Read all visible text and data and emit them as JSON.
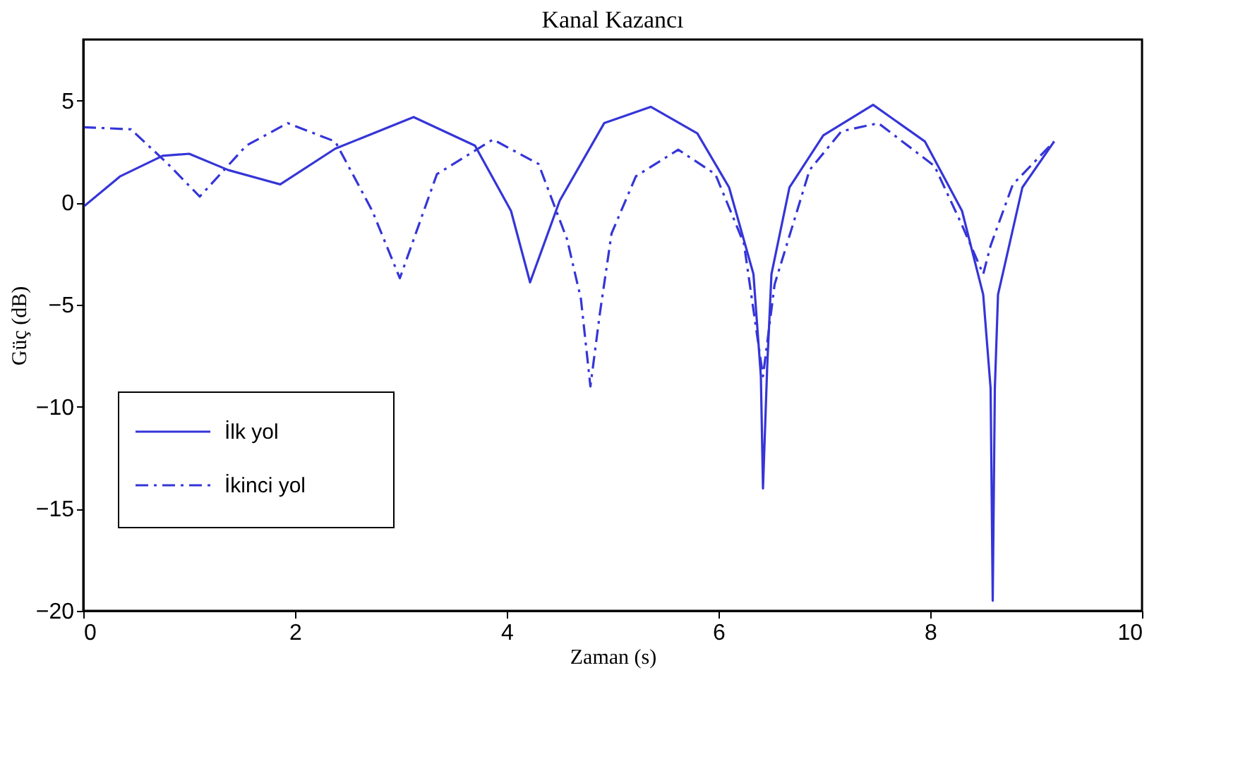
{
  "chart_data": {
    "type": "line",
    "title": "Kanal Kazancı",
    "xlabel": "Zaman (s)",
    "ylabel": "Güç (dB)",
    "xlim": [
      0,
      10
    ],
    "xticks": [
      0,
      2,
      4,
      6,
      8,
      10
    ],
    "ylim": [
      -20,
      8
    ],
    "yticks": [
      -20,
      -15,
      -10,
      -5,
      0,
      5
    ],
    "grid": false,
    "legend": "bottom left",
    "marker": "none",
    "series": [
      {
        "name": "İlk yol",
        "color": "#3535d8",
        "line_style": "solid",
        "x": [
          0,
          0.35,
          0.75,
          1.0,
          1.37,
          1.86,
          2.38,
          3.12,
          3.7,
          4.04,
          4.22,
          4.5,
          4.92,
          5.36,
          5.8,
          6.1,
          6.33,
          6.4,
          6.42,
          6.46,
          6.5,
          6.67,
          6.99,
          7.46,
          7.95,
          8.3,
          8.5,
          8.57,
          8.59,
          8.61,
          8.64,
          8.87,
          9.17
        ],
        "values": [
          -0.2,
          1.3,
          2.3,
          2.4,
          1.6,
          0.9,
          2.65,
          4.2,
          2.8,
          -0.4,
          -3.9,
          0.1,
          3.9,
          4.7,
          3.4,
          0.75,
          -3.5,
          -8.5,
          -14,
          -8,
          -3.5,
          0.75,
          3.3,
          4.8,
          3.0,
          -0.4,
          -4.5,
          -9.1,
          -19.5,
          -9.1,
          -4.5,
          0.75,
          3.0
        ]
      },
      {
        "name": "İkinci yol",
        "color": "#3535d8",
        "line_style": "dashdot",
        "x": [
          0,
          0.45,
          0.8,
          1.1,
          1.54,
          1.93,
          2.38,
          2.73,
          2.99,
          3.34,
          3.87,
          4.3,
          4.57,
          4.7,
          4.79,
          4.88,
          4.99,
          5.22,
          5.62,
          5.97,
          6.24,
          6.42,
          6.53,
          6.86,
          7.16,
          7.51,
          8.04,
          8.3,
          8.45,
          8.5,
          8.57,
          8.78,
          9.17
        ],
        "values": [
          3.7,
          3.6,
          1.9,
          0.3,
          2.8,
          3.9,
          3.0,
          -0.4,
          -3.7,
          1.4,
          3.1,
          1.9,
          -1.8,
          -4.7,
          -9,
          -5.4,
          -1.5,
          1.3,
          2.6,
          1.4,
          -2.0,
          -8.5,
          -4.0,
          1.6,
          3.5,
          3.9,
          1.8,
          -1.1,
          -2.9,
          -3.5,
          -2.1,
          0.9,
          3.0
        ]
      }
    ]
  }
}
